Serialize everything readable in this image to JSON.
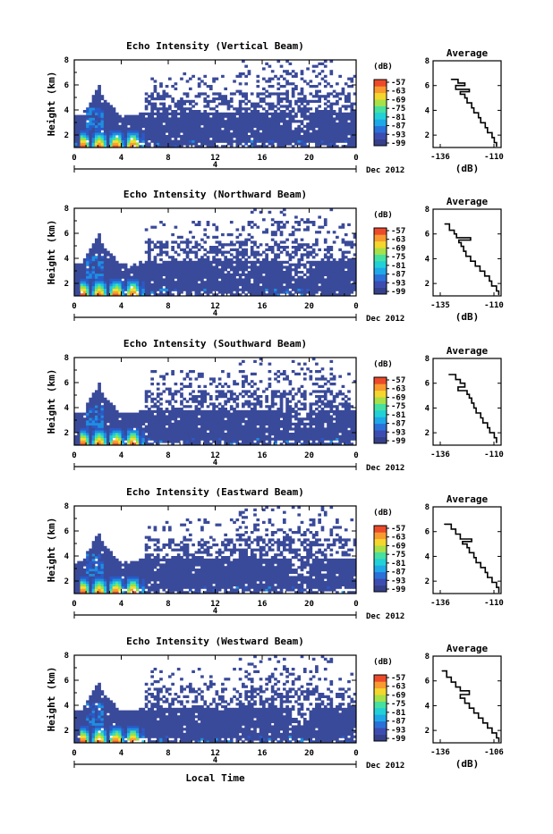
{
  "chart_data": [
    {
      "type": "heatmap",
      "title": "Echo Intensity (Vertical Beam)",
      "ylabel": "Height (km)",
      "xlim": [
        0,
        24
      ],
      "ylim": [
        1,
        8
      ],
      "x_ticks": [
        "0",
        "4",
        "8",
        "12",
        "16",
        "20",
        "0"
      ],
      "y_ticks": [
        "2",
        "4",
        "6",
        "8"
      ],
      "date_tick": "4",
      "date_label": "Dec 2012",
      "colorbar": {
        "unit": "(dB)",
        "labels": [
          "-57",
          "-63",
          "-69",
          "-75",
          "-81",
          "-87",
          "-93",
          "-99"
        ]
      },
      "profile": {
        "title": "Average",
        "xlabel": "(dB)",
        "x_ticks": [
          "-136",
          "-110"
        ],
        "y_ticks": [
          "2",
          "4",
          "6",
          "8"
        ],
        "xlim": [
          -136,
          -106
        ],
        "ylim": [
          1,
          8
        ],
        "points": [
          [
            -128,
            6.5
          ],
          [
            -125,
            6.2
          ],
          [
            -122,
            6.0
          ],
          [
            -126,
            5.7
          ],
          [
            -120,
            5.5
          ],
          [
            -124,
            5.3
          ],
          [
            -122,
            5.0
          ],
          [
            -121,
            4.6
          ],
          [
            -119,
            4.2
          ],
          [
            -118,
            3.8
          ],
          [
            -116,
            3.4
          ],
          [
            -115,
            3.0
          ],
          [
            -113,
            2.6
          ],
          [
            -112,
            2.2
          ],
          [
            -110,
            1.8
          ],
          [
            -109,
            1.4
          ],
          [
            -108,
            1.1
          ]
        ]
      }
    },
    {
      "type": "heatmap",
      "title": "Echo Intensity (Northward Beam)",
      "ylabel": "Height (km)",
      "xlim": [
        0,
        24
      ],
      "ylim": [
        1,
        8
      ],
      "x_ticks": [
        "0",
        "4",
        "8",
        "12",
        "16",
        "20",
        "0"
      ],
      "y_ticks": [
        "2",
        "4",
        "6",
        "8"
      ],
      "date_tick": "4",
      "date_label": "Dec 2012",
      "colorbar": {
        "unit": "(dB)",
        "labels": [
          "-57",
          "-63",
          "-69",
          "-75",
          "-81",
          "-87",
          "-93",
          "-99"
        ]
      },
      "profile": {
        "title": "Average",
        "xlabel": "(dB)",
        "x_ticks": [
          "-135",
          "-110"
        ],
        "y_ticks": [
          "2",
          "4",
          "6",
          "8"
        ],
        "xlim": [
          -135,
          -106
        ],
        "ylim": [
          1,
          8
        ],
        "points": [
          [
            -130,
            6.8
          ],
          [
            -128,
            6.3
          ],
          [
            -126,
            6.0
          ],
          [
            -125,
            5.7
          ],
          [
            -119,
            5.5
          ],
          [
            -124,
            5.3
          ],
          [
            -123,
            5.0
          ],
          [
            -122,
            4.6
          ],
          [
            -121,
            4.2
          ],
          [
            -119,
            3.8
          ],
          [
            -117,
            3.4
          ],
          [
            -115,
            3.0
          ],
          [
            -113,
            2.6
          ],
          [
            -111,
            2.2
          ],
          [
            -110,
            1.8
          ],
          [
            -108,
            1.4
          ],
          [
            -107,
            1.1
          ]
        ]
      }
    },
    {
      "type": "heatmap",
      "title": "Echo Intensity (Southward Beam)",
      "ylabel": "Height (km)",
      "xlim": [
        0,
        24
      ],
      "ylim": [
        1,
        8
      ],
      "x_ticks": [
        "0",
        "4",
        "8",
        "12",
        "16",
        "20",
        "0"
      ],
      "y_ticks": [
        "2",
        "4",
        "6",
        "8"
      ],
      "date_tick": "4",
      "date_label": "Dec 2012",
      "colorbar": {
        "unit": "(dB)",
        "labels": [
          "-57",
          "-63",
          "-69",
          "-75",
          "-81",
          "-87",
          "-93",
          "-99"
        ]
      },
      "profile": {
        "title": "Average",
        "xlabel": "",
        "x_ticks": [
          "-136",
          "-110"
        ],
        "y_ticks": [
          "2",
          "4",
          "6",
          "8"
        ],
        "xlim": [
          -136,
          -106
        ],
        "ylim": [
          1,
          8
        ],
        "points": [
          [
            -129,
            6.7
          ],
          [
            -126,
            6.3
          ],
          [
            -124,
            6.0
          ],
          [
            -122,
            5.7
          ],
          [
            -125,
            5.4
          ],
          [
            -121,
            5.1
          ],
          [
            -120,
            4.8
          ],
          [
            -119,
            4.4
          ],
          [
            -118,
            4.0
          ],
          [
            -117,
            3.6
          ],
          [
            -115,
            3.2
          ],
          [
            -114,
            2.8
          ],
          [
            -112,
            2.4
          ],
          [
            -111,
            2.0
          ],
          [
            -109,
            1.6
          ],
          [
            -108,
            1.2
          ]
        ]
      }
    },
    {
      "type": "heatmap",
      "title": "Echo Intensity (Eastward Beam)",
      "ylabel": "Height (km)",
      "xlim": [
        0,
        24
      ],
      "ylim": [
        1,
        8
      ],
      "x_ticks": [
        "0",
        "4",
        "8",
        "12",
        "16",
        "20",
        "0"
      ],
      "y_ticks": [
        "2",
        "4",
        "6",
        "8"
      ],
      "date_tick": "4",
      "date_label": "Dec 2012",
      "colorbar": {
        "unit": "(dB)",
        "labels": [
          "-57",
          "-63",
          "-69",
          "-75",
          "-81",
          "-87",
          "-93",
          "-99"
        ]
      },
      "profile": {
        "title": "Average",
        "xlabel": "",
        "x_ticks": [
          "-136",
          "-110"
        ],
        "y_ticks": [
          "2",
          "4",
          "6",
          "8"
        ],
        "xlim": [
          -136,
          -106
        ],
        "ylim": [
          1,
          8
        ],
        "points": [
          [
            -131,
            6.6
          ],
          [
            -128,
            6.2
          ],
          [
            -126,
            5.8
          ],
          [
            -124,
            5.4
          ],
          [
            -119,
            5.2
          ],
          [
            -123,
            5.0
          ],
          [
            -121,
            4.7
          ],
          [
            -120,
            4.3
          ],
          [
            -118,
            3.9
          ],
          [
            -117,
            3.5
          ],
          [
            -115,
            3.1
          ],
          [
            -113,
            2.7
          ],
          [
            -112,
            2.3
          ],
          [
            -110,
            1.9
          ],
          [
            -108,
            1.5
          ],
          [
            -107,
            1.1
          ]
        ]
      }
    },
    {
      "type": "heatmap",
      "title": "Echo Intensity (Westward Beam)",
      "ylabel": "Height (km)",
      "xlabel": "Local Time",
      "xlim": [
        0,
        24
      ],
      "ylim": [
        1,
        8
      ],
      "x_ticks": [
        "0",
        "4",
        "8",
        "12",
        "16",
        "20",
        "0"
      ],
      "y_ticks": [
        "2",
        "4",
        "6",
        "8"
      ],
      "date_tick": "4",
      "date_label": "Dec 2012",
      "colorbar": {
        "unit": "(dB)",
        "labels": [
          "-57",
          "-63",
          "-69",
          "-75",
          "-81",
          "-87",
          "-93",
          "-99"
        ]
      },
      "profile": {
        "title": "Average",
        "xlabel": "(dB)",
        "x_ticks": [
          "-136",
          "-106"
        ],
        "y_ticks": [
          "2",
          "4",
          "6",
          "8"
        ],
        "xlim": [
          -136,
          -106
        ],
        "ylim": [
          1,
          8
        ],
        "points": [
          [
            -132,
            6.8
          ],
          [
            -130,
            6.3
          ],
          [
            -128,
            5.9
          ],
          [
            -126,
            5.5
          ],
          [
            -124,
            5.2
          ],
          [
            -120,
            4.9
          ],
          [
            -124,
            4.6
          ],
          [
            -122,
            4.2
          ],
          [
            -120,
            3.8
          ],
          [
            -118,
            3.4
          ],
          [
            -116,
            3.0
          ],
          [
            -114,
            2.6
          ],
          [
            -112,
            2.2
          ],
          [
            -110,
            1.8
          ],
          [
            -108,
            1.4
          ],
          [
            -107,
            1.1
          ]
        ]
      }
    }
  ]
}
